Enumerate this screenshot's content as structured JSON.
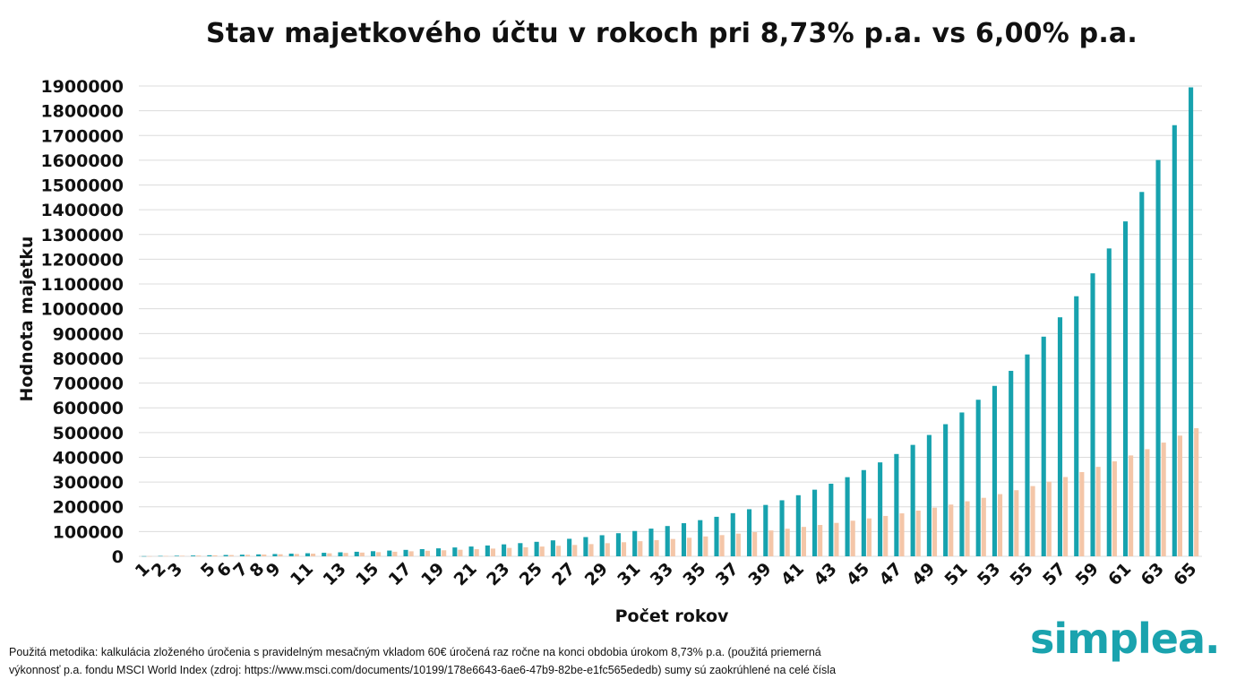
{
  "chart_data": {
    "type": "bar",
    "title": "Stav majetkového účtu v rokoch pri 8,73% p.a. vs 6,00% p.a.",
    "xlabel": "Počet rokov",
    "ylabel": "Hodnota majetku",
    "ylim": [
      0,
      1900000
    ],
    "yticks": [
      "0",
      "100000",
      "200000",
      "300000",
      "400000",
      "500000",
      "600000",
      "700000",
      "800000",
      "900000",
      "1000000",
      "1100000",
      "1200000",
      "1300000",
      "1400000",
      "1500000",
      "1600000",
      "1700000",
      "1800000",
      "1900000"
    ],
    "grid": true,
    "legend": "none",
    "categories": [
      1,
      2,
      3,
      4,
      5,
      6,
      7,
      8,
      9,
      10,
      11,
      12,
      13,
      14,
      15,
      16,
      17,
      18,
      19,
      20,
      21,
      22,
      23,
      24,
      25,
      26,
      27,
      28,
      29,
      30,
      31,
      32,
      33,
      34,
      35,
      36,
      37,
      38,
      39,
      40,
      41,
      42,
      43,
      44,
      45,
      46,
      47,
      48,
      49,
      50,
      51,
      52,
      53,
      54,
      55,
      56,
      57,
      58,
      59,
      60,
      61,
      62,
      63,
      64,
      65
    ],
    "tick_labels": [
      "1",
      "2",
      "3",
      "5",
      "6",
      "7",
      "8",
      "9",
      "11",
      "13",
      "15",
      "17",
      "19",
      "21",
      "23",
      "25",
      "27",
      "29",
      "31",
      "33",
      "35",
      "37",
      "39",
      "41",
      "43",
      "45",
      "47",
      "49",
      "51",
      "53",
      "55",
      "57",
      "59",
      "61",
      "63",
      "65"
    ],
    "series": [
      {
        "values": [
          720,
          1503,
          2355,
          3282,
          4288,
          5383,
          6573,
          7867,
          9274,
          10804,
          12467,
          14276,
          16242,
          18380,
          20704,
          23232,
          25980,
          28968,
          32216,
          35748,
          39588,
          43763,
          48303,
          53239,
          58606,
          64442,
          70787,
          77687,
          85189,
          93346,
          102215,
          111858,
          122343,
          133744,
          146141,
          159620,
          174277,
          190213,
          207541,
          226383,
          246870,
          269147,
          293369,
          319706,
          348343,
          379482,
          413339,
          450154,
          490184,
          533711,
          581039,
          632501,
          688458,
          749300,
          815458,
          887391,
          965609,
          1050655,
          1143132,
          1243683,
          1353021,
          1471904,
          1601171,
          1741727,
          1894564
        ]
      },
      {
        "values": [
          720,
          1483,
          2292,
          3149,
          4058,
          5021,
          6042,
          7124,
          8271,
          9487,
          10776,
          12143,
          13591,
          15127,
          16754,
          18480,
          20309,
          22247,
          24302,
          26480,
          28789,
          31236,
          33831,
          36580,
          39495,
          42585,
          45860,
          49332,
          53012,
          56913,
          61047,
          65430,
          70076,
          75000,
          80220,
          85753,
          91618,
          97835,
          104425,
          111411,
          118815,
          126664,
          134984,
          143803,
          153151,
          163060,
          173564,
          184698,
          196500,
          209010,
          222271,
          236328,
          251227,
          267021,
          283762,
          301507,
          320318,
          340257,
          361393,
          383796,
          407544,
          432716,
          459399,
          487683,
          517664
        ]
      }
    ]
  },
  "colors": {
    "series1": "#17a2ae",
    "series2": "#f4c6a8",
    "grid": "#dcdcdc",
    "logo": "#1aa3ae"
  },
  "footnote": {
    "line1": "Použitá metodika: kalkulácia zloženého úročenia s pravidelným mesačným vkladom 60€ úročená raz ročne na konci obdobia úrokom 8,73% p.a. (použitá priemerná",
    "line2": "výkonnosť p.a. fondu MSCI World Index (zdroj: https://www.msci.com/documents/10199/178e6643-6ae6-47b9-82be-e1fc565ededb) sumy sú zaokrúhlené na celé čísla"
  },
  "logo": {
    "text": "simplea."
  }
}
